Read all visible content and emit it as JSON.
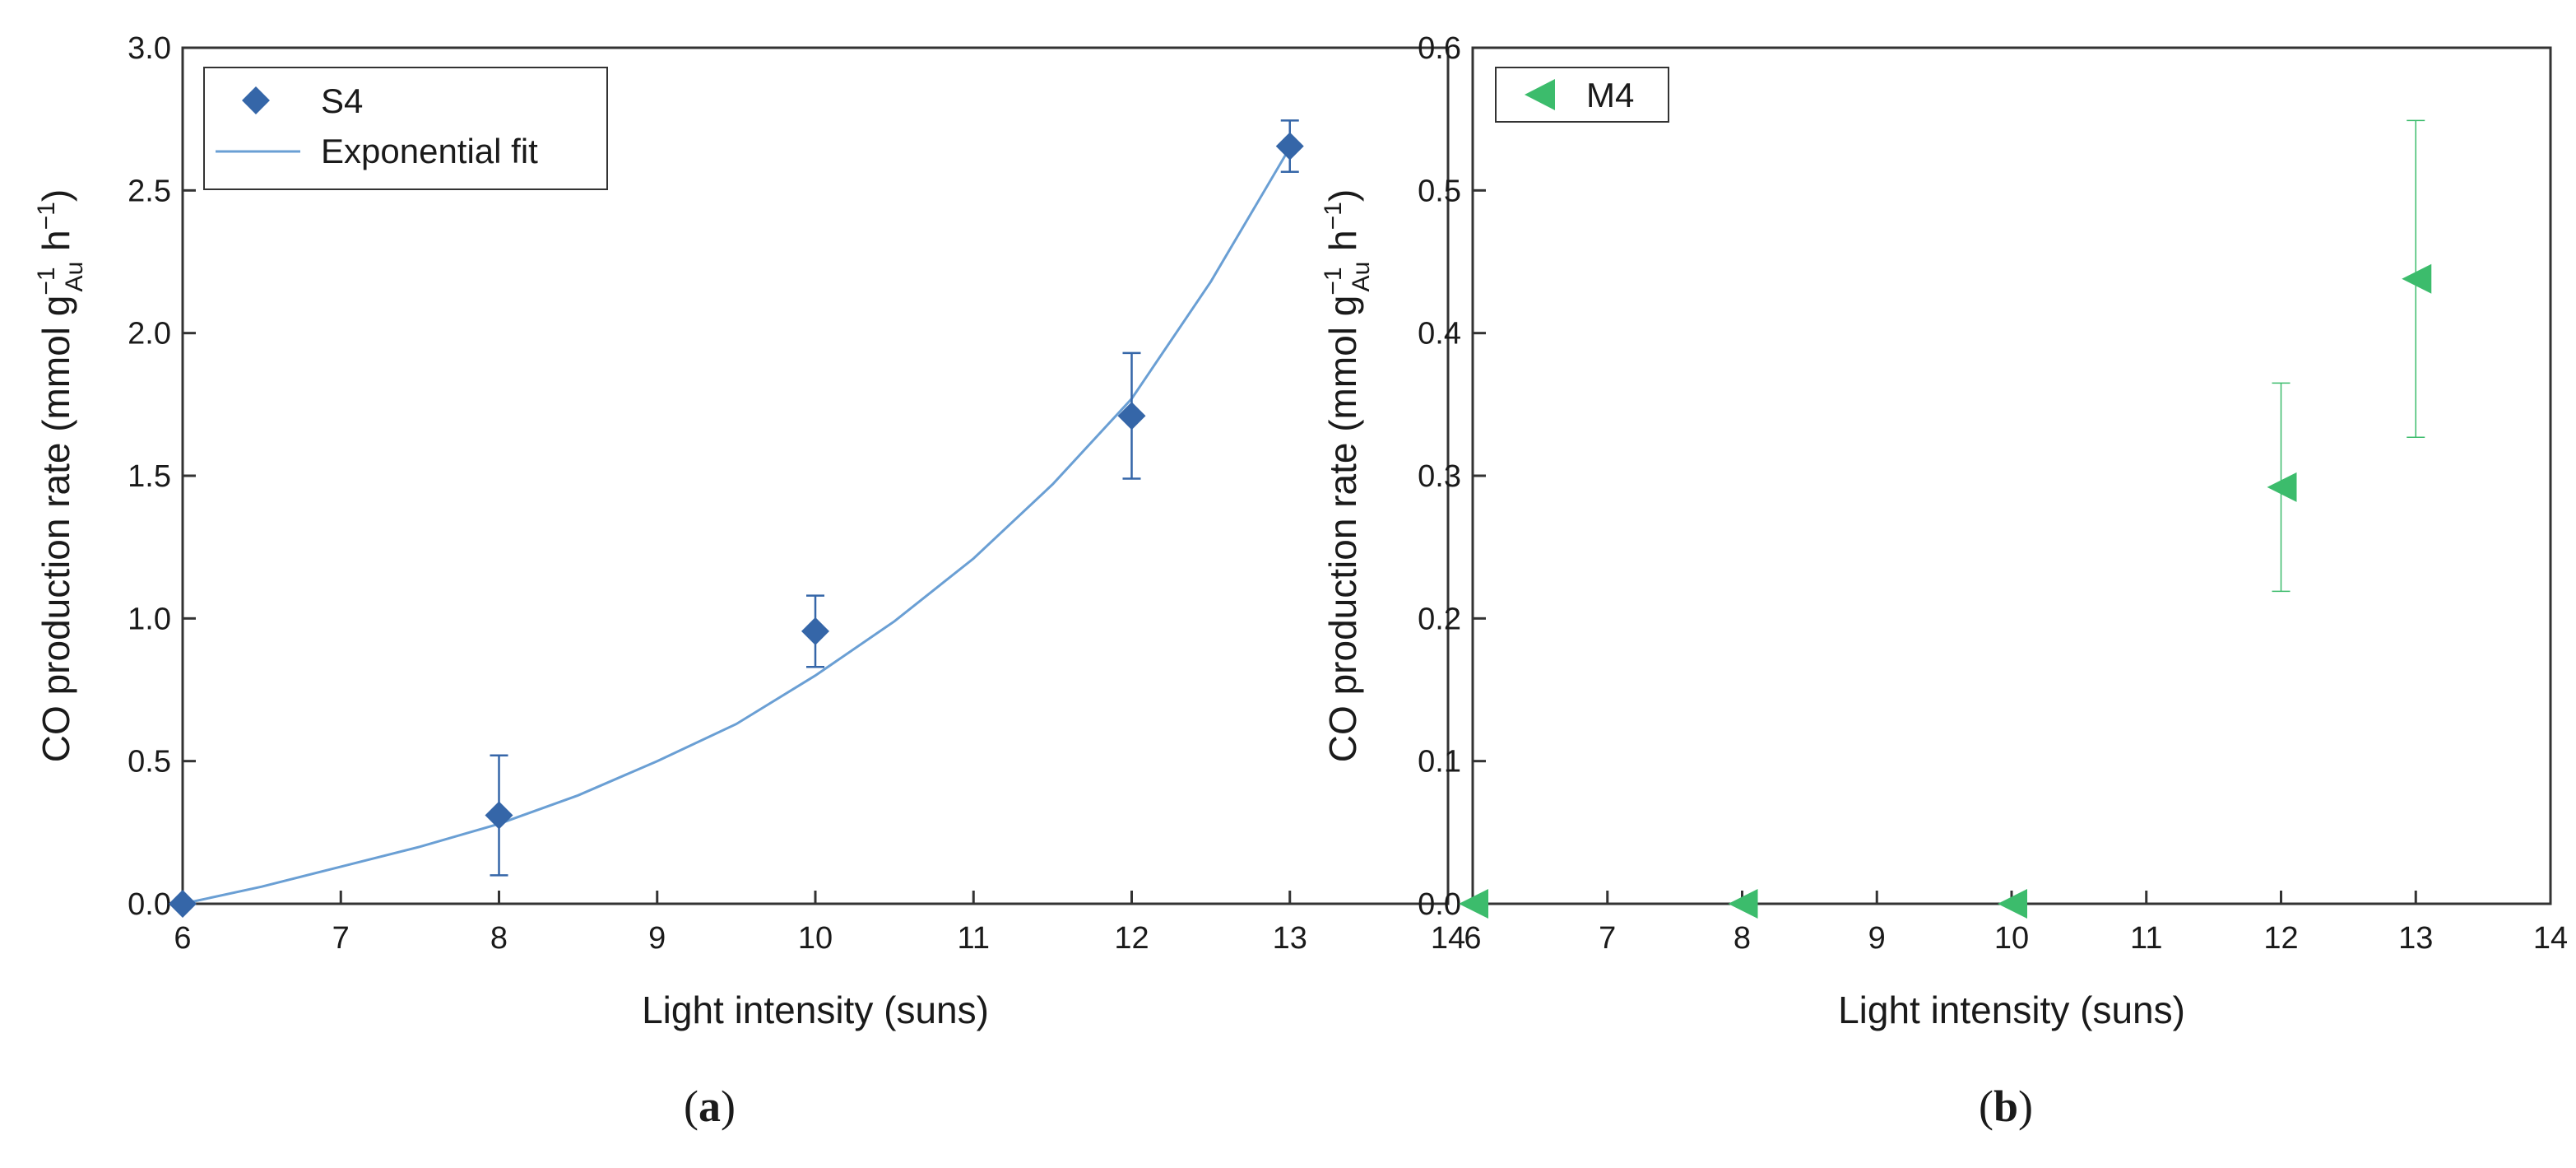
{
  "chart_data": [
    {
      "type": "scatter",
      "panel_label": "(a)",
      "panel_letter": "a",
      "xlabel": "Light intensity (suns)",
      "ylabel": {
        "prefix": "CO production rate (mmol g",
        "sub": "Au",
        "sup1": "−1",
        "mid": " h",
        "sup2": "−1",
        "suffix": ")"
      },
      "xlim": [
        6,
        14
      ],
      "ylim": [
        0,
        3.0
      ],
      "xticks": [
        6,
        7,
        8,
        9,
        10,
        11,
        12,
        13,
        14
      ],
      "yticks": [
        0.0,
        0.5,
        1.0,
        1.5,
        2.0,
        2.5,
        3.0
      ],
      "ytick_decimals": 1,
      "legend_position": "top-left",
      "series": [
        {
          "name": "S4",
          "marker": "diamond",
          "color": "#3566a8",
          "x": [
            6,
            8,
            10,
            12,
            13
          ],
          "y": [
            0.0,
            0.31,
            0.955,
            1.71,
            2.655
          ],
          "err_low": [
            0.0,
            0.21,
            0.125,
            0.22,
            0.09
          ],
          "err_high": [
            0.0,
            0.21,
            0.125,
            0.22,
            0.09
          ]
        }
      ],
      "fit": {
        "name": "Exponential fit",
        "color": "#6a9fd4",
        "x": [
          6.0,
          6.5,
          7.0,
          7.5,
          8.0,
          8.5,
          9.0,
          9.5,
          10.0,
          10.5,
          11.0,
          11.5,
          12.0,
          12.5,
          13.0
        ],
        "y": [
          0.0,
          0.06,
          0.13,
          0.2,
          0.28,
          0.38,
          0.5,
          0.63,
          0.8,
          0.99,
          1.21,
          1.47,
          1.77,
          2.18,
          2.65
        ]
      }
    },
    {
      "type": "scatter",
      "panel_label": "(b)",
      "panel_letter": "b",
      "xlabel": "Light intensity (suns)",
      "ylabel": {
        "prefix": "CO production rate (mmol g",
        "sub": "Au",
        "sup1": "−1",
        "mid": " h",
        "sup2": "−1",
        "suffix": ")"
      },
      "xlim": [
        6,
        14
      ],
      "ylim": [
        0,
        0.6
      ],
      "xticks": [
        6,
        7,
        8,
        9,
        10,
        11,
        12,
        13,
        14
      ],
      "yticks": [
        0.0,
        0.1,
        0.2,
        0.3,
        0.4,
        0.5,
        0.6
      ],
      "ytick_decimals": 1,
      "legend_position": "top-left",
      "series": [
        {
          "name": "M4",
          "marker": "triangle-left",
          "color": "#3cbc6c",
          "x": [
            6,
            8,
            10,
            12,
            13
          ],
          "y": [
            0.0,
            0.0,
            0.0,
            0.292,
            0.438
          ],
          "err_low": [
            0.0,
            0.0,
            0.0,
            0.073,
            0.111
          ],
          "err_high": [
            0.0,
            0.0,
            0.0,
            0.073,
            0.111
          ]
        }
      ]
    }
  ]
}
